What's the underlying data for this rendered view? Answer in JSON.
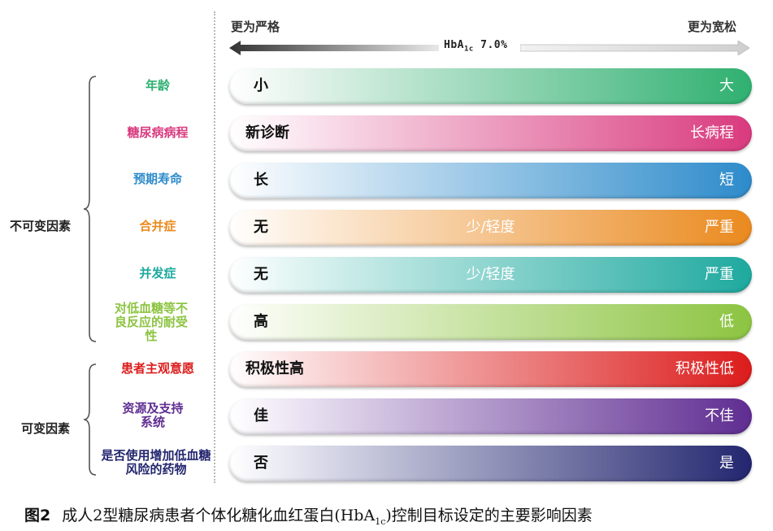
{
  "scale": {
    "left_label": "更为严格",
    "right_label": "更为宽松",
    "threshold_main": "HbA",
    "threshold_sub": "1c",
    "threshold_value": "7.0%"
  },
  "groups": {
    "fixed": "不可变因素",
    "variable": "可变因素"
  },
  "factors": [
    {
      "label": "年龄",
      "left": "小",
      "middle": "",
      "right": "大",
      "color": "#2fb070"
    },
    {
      "label": "糖尿病病程",
      "left": "新诊断",
      "middle": "",
      "right": "长病程",
      "color": "#d93a7e"
    },
    {
      "label": "预期寿命",
      "left": "长",
      "middle": "",
      "right": "短",
      "color": "#2d8bcb"
    },
    {
      "label": "合并症",
      "left": "无",
      "middle": "少/轻度",
      "right": "严重",
      "color": "#ea8a1f"
    },
    {
      "label": "并发症",
      "left": "无",
      "middle": "少/轻度",
      "right": "严重",
      "color": "#1ea99f"
    },
    {
      "label": "对低血糖等不良反应的耐受性",
      "left": "高",
      "middle": "",
      "right": "低",
      "color": "#8cc441"
    },
    {
      "label": "患者主观意愿",
      "left": "积极性高",
      "middle": "",
      "right": "积极性低",
      "color": "#dc1c1c"
    },
    {
      "label": "资源及支持系统",
      "left": "佳",
      "middle": "",
      "right": "不佳",
      "color": "#5f2d91"
    },
    {
      "label": "是否使用增加低血糖风险的药物",
      "left": "否",
      "middle": "",
      "right": "是",
      "color": "#23266f"
    }
  ],
  "caption": {
    "figure": "图2",
    "text_before": "成人2型糖尿病患者个体化糖化血红蛋白(HbA",
    "text_sub": "1c",
    "text_after": ")控制目标设定的主要影响因素"
  }
}
